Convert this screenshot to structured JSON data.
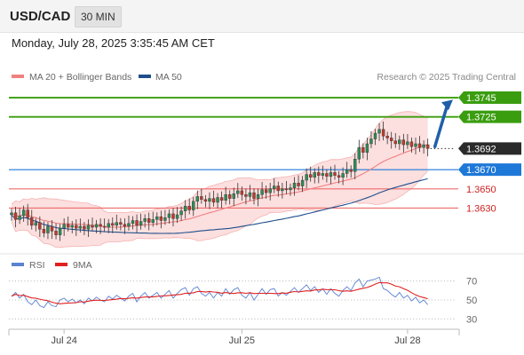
{
  "header": {
    "symbol": "USD/CAD",
    "timeframe": "30 MIN",
    "datetime": "Monday, July 28, 2025 3:35:45 AM CET"
  },
  "colors": {
    "ma20": "#f08080",
    "ma50": "#1f4e8c",
    "bollinger_fill": "#fbd9d9",
    "up": "#2e8b57",
    "down": "#c0392b",
    "target": "#3a9d0f",
    "pivot": "#1e78d7",
    "support": "#ee6b6b",
    "arrow": "#1f5fa8",
    "rsi": "#5a82d0",
    "rsi_ma": "#e02020"
  },
  "chart_data": [
    {
      "type": "candlestick",
      "legend": [
        {
          "name": "MA 20 + Bollinger Bands",
          "color": "#f08080"
        },
        {
          "name": "MA 50",
          "color": "#1f4e8c"
        }
      ],
      "credit": "Research © 2025 Trading Central",
      "ylim": [
        1.3586,
        1.3758
      ],
      "x_ticks": [
        {
          "label": "Jul 24",
          "index": 13
        },
        {
          "label": "Jul 25",
          "index": 57
        },
        {
          "label": "Jul 28",
          "index": 98
        }
      ],
      "levels": [
        {
          "label": "1.3745",
          "value": 1.3745,
          "kind": "target"
        },
        {
          "label": "1.3725",
          "value": 1.3725,
          "kind": "target"
        },
        {
          "label": "1.3692",
          "value": 1.3692,
          "kind": "last"
        },
        {
          "label": "1.3670",
          "value": 1.367,
          "kind": "pivot"
        },
        {
          "label": "1.3650",
          "value": 1.365,
          "kind": "support"
        },
        {
          "label": "1.3630",
          "value": 1.363,
          "kind": "support"
        }
      ],
      "arrow": {
        "from": 1.3694,
        "to": 1.3743
      },
      "closes": [
        1.3625,
        1.3618,
        1.3622,
        1.3628,
        1.362,
        1.3612,
        1.3615,
        1.3608,
        1.3604,
        1.3611,
        1.3606,
        1.3602,
        1.3609,
        1.3613,
        1.361,
        1.3612,
        1.3609,
        1.3611,
        1.3608,
        1.3612,
        1.361,
        1.3613,
        1.3611,
        1.361,
        1.3614,
        1.3612,
        1.3615,
        1.3613,
        1.3611,
        1.3614,
        1.3617,
        1.3612,
        1.3616,
        1.3619,
        1.3615,
        1.3618,
        1.3621,
        1.3617,
        1.362,
        1.3624,
        1.3619,
        1.3623,
        1.3627,
        1.3632,
        1.3628,
        1.3637,
        1.3642,
        1.3639,
        1.3637,
        1.364,
        1.3636,
        1.3641,
        1.3638,
        1.3644,
        1.364,
        1.3645,
        1.3648,
        1.3644,
        1.3642,
        1.3646,
        1.364,
        1.3644,
        1.3649,
        1.3646,
        1.365,
        1.3653,
        1.3648,
        1.365,
        1.3649,
        1.3651,
        1.3656,
        1.3653,
        1.3659,
        1.3665,
        1.3662,
        1.3667,
        1.3664,
        1.3666,
        1.3663,
        1.3667,
        1.3664,
        1.3662,
        1.3666,
        1.367,
        1.3668,
        1.3681,
        1.3693,
        1.3688,
        1.3697,
        1.3702,
        1.3708,
        1.3712,
        1.3705,
        1.3703,
        1.37,
        1.3697,
        1.3701,
        1.3696,
        1.3699,
        1.3694,
        1.3697,
        1.3693,
        1.3696,
        1.3692
      ]
    },
    {
      "type": "line",
      "legend": [
        {
          "name": "RSI",
          "color": "#5a82d0"
        },
        {
          "name": "9MA",
          "color": "#e02020"
        }
      ],
      "ylim": [
        20,
        80
      ],
      "y_ticks": [
        70,
        50,
        30
      ],
      "rsi": [
        54,
        58,
        52,
        56,
        48,
        45,
        50,
        44,
        42,
        48,
        44,
        43,
        50,
        52,
        48,
        51,
        47,
        50,
        46,
        52,
        49,
        53,
        50,
        48,
        54,
        51,
        55,
        52,
        49,
        54,
        57,
        48,
        54,
        58,
        52,
        55,
        58,
        52,
        56,
        60,
        52,
        57,
        61,
        63,
        55,
        62,
        64,
        57,
        54,
        58,
        52,
        58,
        54,
        62,
        56,
        61,
        63,
        55,
        52,
        58,
        50,
        56,
        62,
        56,
        61,
        62,
        54,
        58,
        55,
        59,
        63,
        58,
        62,
        66,
        60,
        64,
        58,
        62,
        56,
        62,
        57,
        54,
        60,
        64,
        60,
        68,
        72,
        64,
        70,
        71,
        72,
        74,
        62,
        60,
        56,
        53,
        58,
        52,
        55,
        49,
        53,
        47,
        50,
        45
      ]
    }
  ]
}
